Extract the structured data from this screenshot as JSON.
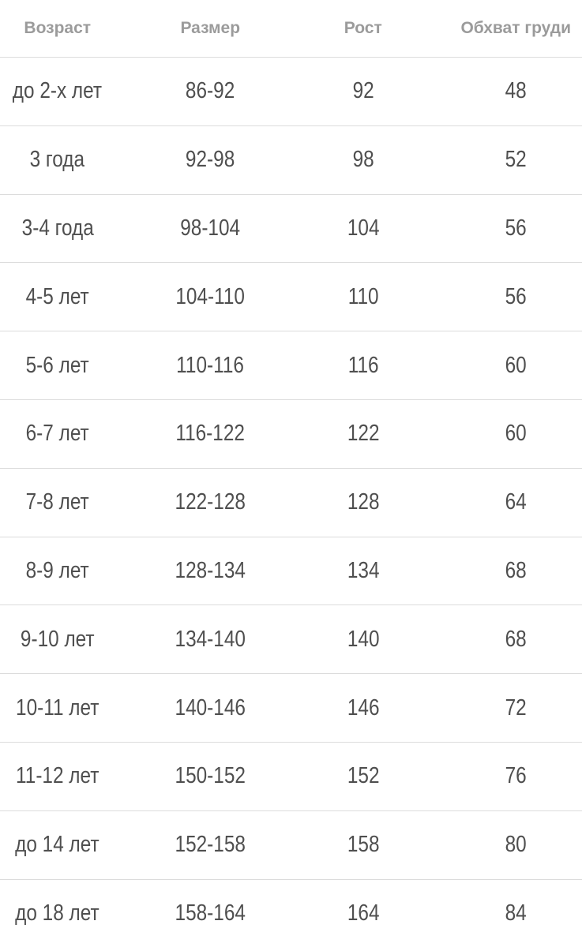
{
  "chart_data": {
    "type": "table",
    "columns": [
      "Возраст",
      "Размер",
      "Рост",
      "Обхват груди"
    ],
    "rows": [
      [
        "до 2-х лет",
        "86-92",
        "92",
        "48"
      ],
      [
        "3 года",
        "92-98",
        "98",
        "52"
      ],
      [
        "3-4 года",
        "98-104",
        "104",
        "56"
      ],
      [
        "4-5 лет",
        "104-110",
        "110",
        "56"
      ],
      [
        "5-6 лет",
        "110-116",
        "116",
        "60"
      ],
      [
        "6-7 лет",
        "116-122",
        "122",
        "60"
      ],
      [
        "7-8 лет",
        "122-128",
        "128",
        "64"
      ],
      [
        "8-9 лет",
        "128-134",
        "134",
        "68"
      ],
      [
        "9-10 лет",
        "134-140",
        "140",
        "68"
      ],
      [
        "10-11 лет",
        "140-146",
        "146",
        "72"
      ],
      [
        "11-12 лет",
        "150-152",
        "152",
        "76"
      ],
      [
        "до 14 лет",
        "152-158",
        "158",
        "80"
      ],
      [
        "до 18 лет",
        "158-164",
        "164",
        "84"
      ]
    ],
    "layout_hints": {
      "grid": "horizontal-dividers-only",
      "last_row_clipped": true
    }
  },
  "colors": {
    "background": "#ffffff",
    "header_text": "#9b9b9b",
    "body_text": "#4f4f4f",
    "divider": "#dcdcdc"
  }
}
